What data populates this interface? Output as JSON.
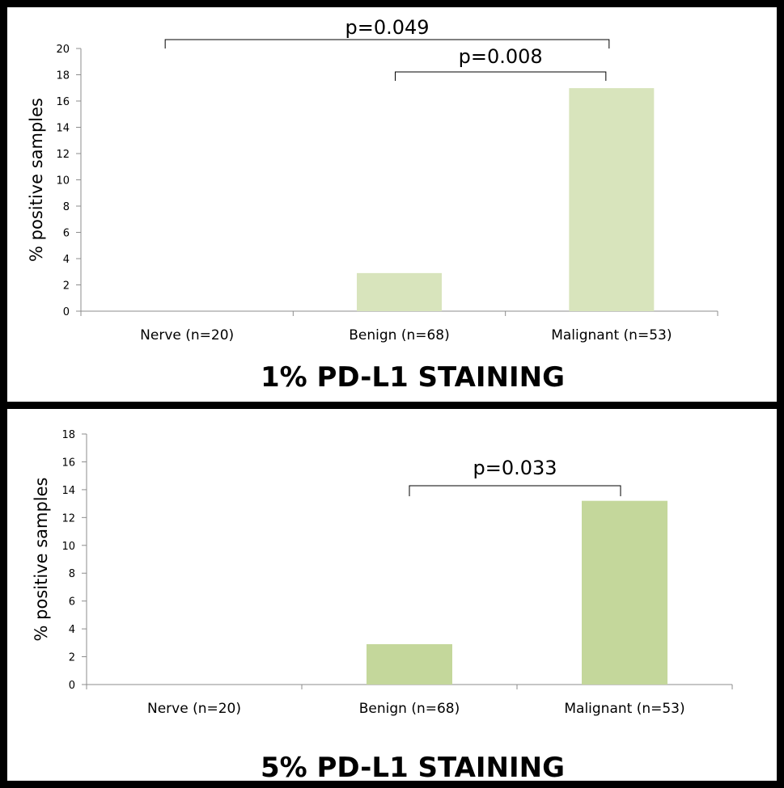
{
  "chart_data": [
    {
      "type": "bar",
      "title": "1% PD-L1 STAINING",
      "ylabel": "% positive samples",
      "xlabel": "",
      "categories": [
        "Nerve (n=20)",
        "Benign (n=68)",
        "Malignant (n=53)"
      ],
      "values": [
        0,
        2.9,
        16.98
      ],
      "ylim": [
        0,
        20
      ],
      "yticks": [
        0,
        2,
        4,
        6,
        8,
        10,
        12,
        14,
        16,
        18,
        20
      ],
      "bar_color": "#d8e4bc",
      "grid": false,
      "annotations": [
        {
          "text": "p=0.049",
          "from": "Nerve (n=20)",
          "to": "Malignant (n=53)"
        },
        {
          "text": "p=0.008",
          "from": "Benign (n=68)",
          "to": "Malignant (n=53)"
        }
      ]
    },
    {
      "type": "bar",
      "title": "5% PD-L1 STAINING",
      "ylabel": "% positive samples",
      "xlabel": "",
      "categories": [
        "Nerve (n=20)",
        "Benign (n=68)",
        "Malignant (n=53)"
      ],
      "values": [
        0,
        2.9,
        13.2
      ],
      "ylim": [
        0,
        18
      ],
      "yticks": [
        0,
        2,
        4,
        6,
        8,
        10,
        12,
        14,
        16,
        18
      ],
      "bar_color": "#c4d79b",
      "grid": false,
      "annotations": [
        {
          "text": "p=0.033",
          "from": "Benign (n=68)",
          "to": "Malignant (n=53)"
        }
      ]
    }
  ]
}
